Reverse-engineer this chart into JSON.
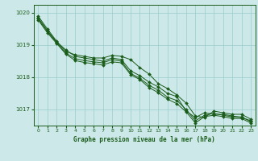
{
  "xlabel": "Graphe pression niveau de la mer (hPa)",
  "background_color": "#cce8e8",
  "grid_color": "#99cccc",
  "line_color": "#1a5c1a",
  "marker_color": "#1a5c1a",
  "xlim": [
    -0.5,
    23.5
  ],
  "ylim": [
    1016.5,
    1020.25
  ],
  "yticks": [
    1017,
    1018,
    1019,
    1020
  ],
  "xticks": [
    0,
    1,
    2,
    3,
    4,
    5,
    6,
    7,
    8,
    9,
    10,
    11,
    12,
    13,
    14,
    15,
    16,
    17,
    18,
    19,
    20,
    21,
    22,
    23
  ],
  "series": [
    [
      1019.85,
      1019.45,
      1019.1,
      1018.85,
      1018.65,
      1018.6,
      1018.55,
      1018.5,
      1018.6,
      1018.55,
      1018.2,
      1018.05,
      1017.85,
      1017.7,
      1017.5,
      1017.4,
      1016.95,
      1016.75,
      1016.9,
      1016.85,
      1016.85,
      1016.8,
      1016.75,
      1016.65
    ],
    [
      1019.9,
      1019.5,
      1019.12,
      1018.8,
      1018.7,
      1018.65,
      1018.6,
      1018.6,
      1018.68,
      1018.65,
      1018.55,
      1018.3,
      1018.1,
      1017.8,
      1017.65,
      1017.45,
      1017.2,
      1016.8,
      1016.75,
      1016.95,
      1016.9,
      1016.85,
      1016.85,
      1016.7
    ],
    [
      1019.82,
      1019.42,
      1019.08,
      1018.75,
      1018.58,
      1018.52,
      1018.48,
      1018.45,
      1018.55,
      1018.5,
      1018.12,
      1017.97,
      1017.75,
      1017.6,
      1017.38,
      1017.28,
      1017.0,
      1016.65,
      1016.82,
      1016.88,
      1016.82,
      1016.77,
      1016.77,
      1016.62
    ],
    [
      1019.78,
      1019.38,
      1019.05,
      1018.72,
      1018.52,
      1018.46,
      1018.42,
      1018.38,
      1018.48,
      1018.45,
      1018.08,
      1017.93,
      1017.68,
      1017.52,
      1017.32,
      1017.18,
      1016.93,
      1016.58,
      1016.78,
      1016.82,
      1016.78,
      1016.72,
      1016.72,
      1016.58
    ]
  ]
}
